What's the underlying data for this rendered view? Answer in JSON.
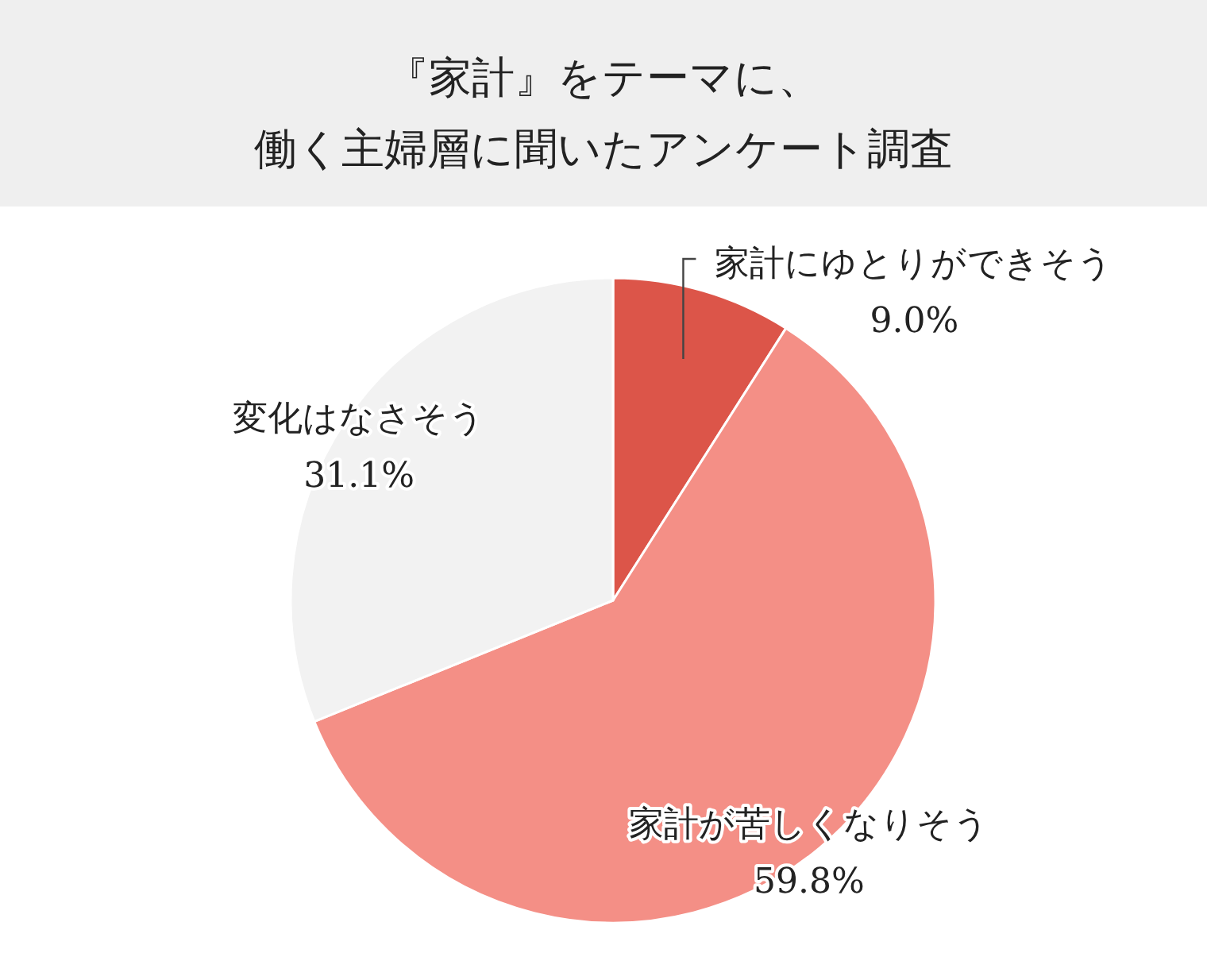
{
  "chart_data": {
    "type": "pie",
    "title": "『家計』をテーマに、働く主婦層に聞いたアンケート調査",
    "categories": [
      "家計にゆとりができそう",
      "家計が苦しくなりそう",
      "変化はなさそう"
    ],
    "values": [
      9.0,
      59.8,
      31.1
    ],
    "colors": [
      "#dc5549",
      "#f48f86",
      "#f2f2f2"
    ],
    "value_labels": [
      "9.0%",
      "59.8%",
      "31.1%"
    ]
  }
}
